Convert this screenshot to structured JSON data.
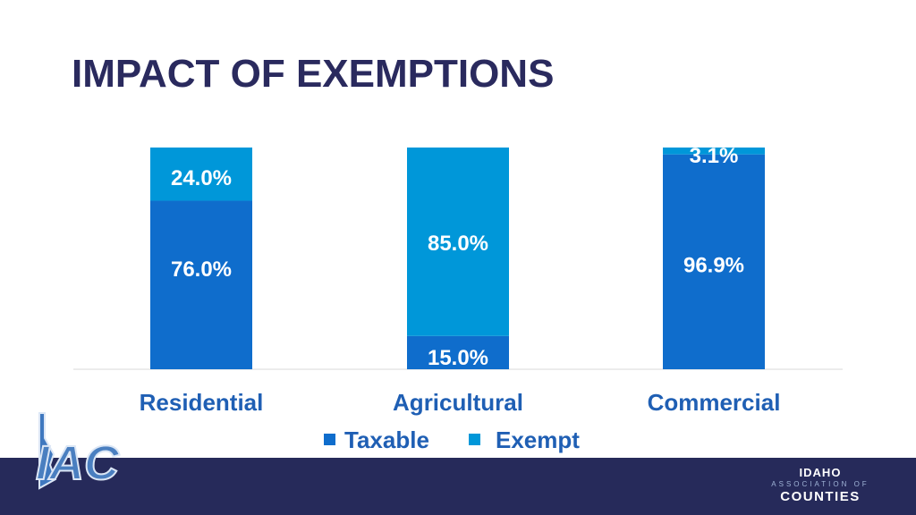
{
  "slide": {
    "title": "IMPACT OF EXEMPTIONS"
  },
  "chart_data": {
    "type": "bar",
    "stacked": true,
    "percent": true,
    "categories": [
      "Residential",
      "Agricultural",
      "Commercial"
    ],
    "series": [
      {
        "name": "Taxable",
        "values": [
          76.0,
          15.0,
          96.9
        ],
        "labels": [
          "76.0%",
          "15.0%",
          "96.9%"
        ],
        "color": "#0f6dcc"
      },
      {
        "name": "Exempt",
        "values": [
          24.0,
          85.0,
          3.1
        ],
        "labels": [
          "24.0%",
          "85.0%",
          "3.1%"
        ],
        "color": "#0097d9"
      }
    ],
    "ylim": [
      0,
      100
    ],
    "legend_position": "bottom",
    "label_color": "#ffffff",
    "axis_label_color": "#1f5fb4"
  },
  "branding": {
    "line1": "IDAHO",
    "line2": "ASSOCIATION OF",
    "line3": "COUNTIES",
    "logo_text": "IAC",
    "band_color": "#262a5a"
  }
}
